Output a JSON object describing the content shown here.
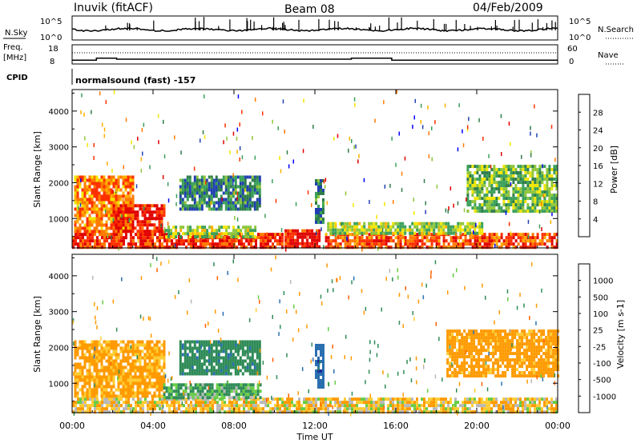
{
  "header": {
    "station": "Inuvik (fitACF)",
    "beam": "Beam 08",
    "date": "04/Feb/2009"
  },
  "panels": {
    "nsky_label": "N.Sky",
    "nsearch_label": "N.Search",
    "nsky_ticks": [
      "10^5",
      "10^0"
    ],
    "nsearch_ticks": [
      "10^5",
      "10^0"
    ],
    "freq_label": "Freq.",
    "freq_unit": "[MHz]",
    "freq_ticks": [
      "18",
      "8"
    ],
    "nave_label": "Nave",
    "nave_ticks": [
      "60",
      "0"
    ],
    "cpid_label": "CPID",
    "cpid_text": "normalsound (fast) -157"
  },
  "axes": {
    "xlabel": "Time UT",
    "ylabel": "Slant Range [km]",
    "x_ticks": [
      "00:00",
      "04:00",
      "08:00",
      "12:00",
      "16:00",
      "20:00",
      "00:00"
    ],
    "x_range_hours": [
      0,
      24
    ],
    "y_ticks": [
      1000,
      2000,
      3000,
      4000
    ],
    "y_range_km": [
      180,
      4600
    ]
  },
  "colorbars": {
    "power": {
      "title": "Power [dB]",
      "labels": [
        "28",
        "24",
        "20",
        "16",
        "12",
        "8",
        "4"
      ],
      "colors": [
        "#0000ff",
        "#2040b0",
        "#2e7d4a",
        "#3aa05a",
        "#8fc63a",
        "#f2e600",
        "#ffb000",
        "#ff7a00",
        "#ff3000",
        "#e00000"
      ]
    },
    "velocity": {
      "title": "Velocity [m s-1]",
      "labels": [
        "1000",
        "500",
        "100",
        "25",
        "-25",
        "-100",
        "-500",
        "-1000"
      ],
      "colors": [
        "#ff0000",
        "#ff6000",
        "#ff9a00",
        "#ffcc33",
        "#b8b8b8",
        "#66cc44",
        "#2e8b57",
        "#2a6fb0",
        "#1a2a9a"
      ]
    }
  },
  "chart_data": {
    "type": "heatmap",
    "title": "Beam 08",
    "xlabel": "Time UT",
    "ylabel": "Slant Range [km]",
    "xlim_hours": [
      0,
      24
    ],
    "ylim_km": [
      180,
      4600
    ],
    "freq_mhz": [
      {
        "t0": 0.0,
        "t1": 1.2,
        "value": 10
      },
      {
        "t0": 1.2,
        "t1": 2.2,
        "value": 11
      },
      {
        "t0": 2.2,
        "t1": 13.8,
        "value": 10.5
      },
      {
        "t0": 13.8,
        "t1": 15.8,
        "value": 11
      },
      {
        "t0": 15.8,
        "t1": 24.0,
        "value": 10
      }
    ],
    "power_regions": [
      {
        "t0": 0.0,
        "t1": 10.4,
        "r0": 200,
        "r1": 600,
        "db": 26
      },
      {
        "t0": 0.1,
        "t1": 3.0,
        "r0": 600,
        "r1": 2200,
        "db": 22
      },
      {
        "t0": 2.0,
        "t1": 4.6,
        "r0": 600,
        "r1": 1400,
        "db": 27
      },
      {
        "t0": 4.6,
        "t1": 9.0,
        "r0": 500,
        "r1": 800,
        "db": 14
      },
      {
        "t0": 10.5,
        "t1": 12.2,
        "r0": 200,
        "r1": 700,
        "db": 28
      },
      {
        "t0": 12.5,
        "t1": 24.0,
        "r0": 200,
        "r1": 600,
        "db": 25
      },
      {
        "t0": 12.6,
        "t1": 20.3,
        "r0": 600,
        "r1": 900,
        "db": 14
      },
      {
        "t0": 5.3,
        "t1": 9.3,
        "r0": 1300,
        "r1": 2200,
        "db": 8
      },
      {
        "t0": 19.5,
        "t1": 24.0,
        "r0": 1200,
        "r1": 2500,
        "db": 12
      },
      {
        "t0": 12.0,
        "t1": 12.4,
        "r0": 900,
        "r1": 2100,
        "db": 8
      }
    ],
    "velocity_regions": [
      {
        "t0": 0.0,
        "t1": 24.0,
        "r0": 200,
        "r1": 600,
        "v": -60
      },
      {
        "t0": 0.1,
        "t1": 4.5,
        "r0": 600,
        "r1": 2200,
        "v": -150
      },
      {
        "t0": 4.5,
        "t1": 9.3,
        "r0": 600,
        "r1": 1000,
        "v": 120
      },
      {
        "t0": 5.3,
        "t1": 9.3,
        "r0": 1300,
        "r1": 2200,
        "v": 400
      },
      {
        "t0": 12.0,
        "t1": 12.4,
        "r0": 900,
        "r1": 2100,
        "v": 900
      },
      {
        "t0": 18.5,
        "t1": 24.0,
        "r0": 1200,
        "r1": 2500,
        "v": -200
      }
    ]
  }
}
